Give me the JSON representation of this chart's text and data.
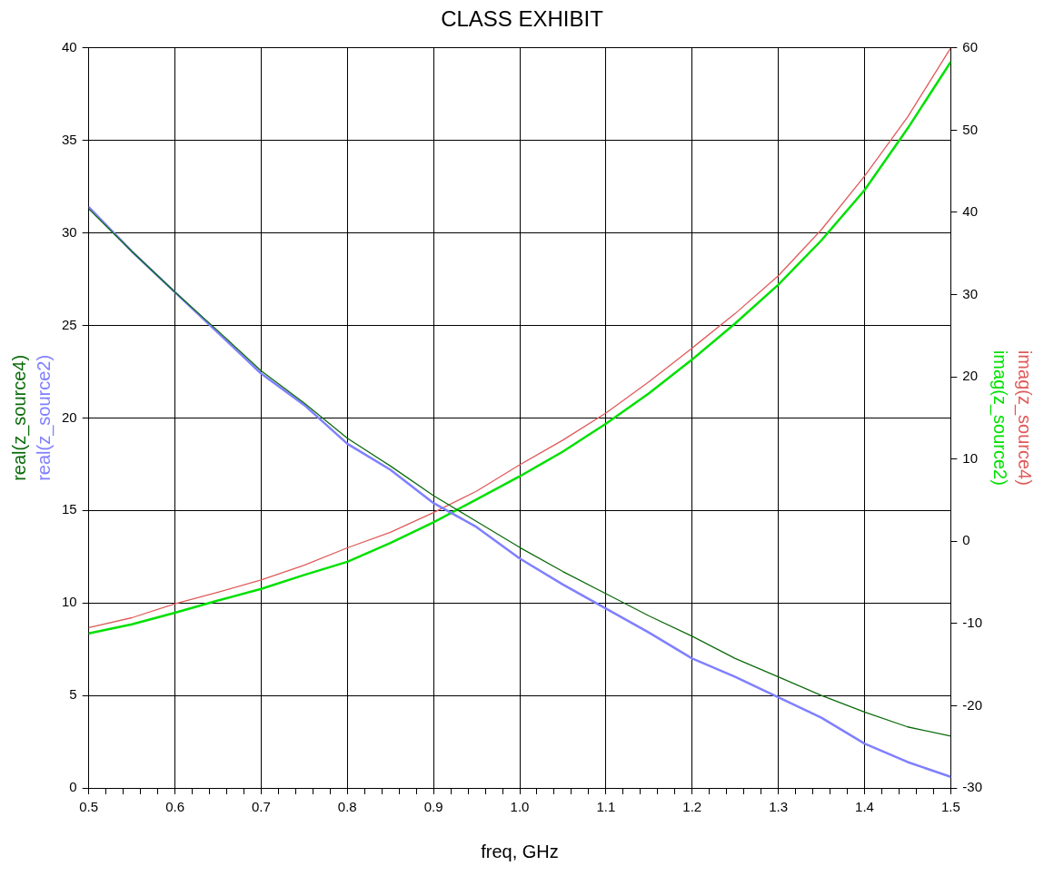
{
  "chart_data": {
    "type": "line",
    "title": "CLASS EXHIBIT",
    "xlabel": "freq, GHz",
    "x": [
      0.5,
      0.55,
      0.6,
      0.65,
      0.7,
      0.75,
      0.8,
      0.85,
      0.9,
      0.95,
      1.0,
      1.05,
      1.1,
      1.15,
      1.2,
      1.25,
      1.3,
      1.35,
      1.4,
      1.45,
      1.5
    ],
    "series": [
      {
        "name": "real(z_source4)",
        "color": "#0b6b0b",
        "values": [
          31.3,
          29.0,
          26.8,
          24.7,
          22.55,
          20.8,
          18.9,
          17.4,
          15.8,
          14.4,
          13.0,
          11.7,
          10.5,
          9.3,
          8.2,
          7.0,
          6.0,
          5.0,
          4.1,
          3.3,
          2.8
        ]
      },
      {
        "name": "real(z_source2)",
        "color": "#7f7fff",
        "values": [
          31.4,
          29.0,
          26.8,
          24.6,
          22.4,
          20.7,
          18.6,
          17.2,
          15.4,
          14.1,
          12.4,
          11.0,
          9.7,
          8.4,
          7.0,
          6.0,
          4.9,
          3.8,
          2.4,
          1.4,
          0.6
        ]
      },
      {
        "name": "imag(z_source4)",
        "color": "#e05a5a",
        "axis": "y2",
        "values": [
          -10.5,
          -9.3,
          -7.6,
          -6.2,
          -4.7,
          -2.9,
          -0.8,
          1.1,
          3.5,
          6.1,
          9.3,
          12.3,
          15.6,
          19.4,
          23.5,
          27.7,
          32.3,
          37.9,
          44.4,
          51.6,
          60
        ]
      },
      {
        "name": "imag(z_source2)",
        "color": "#00e000",
        "axis": "y2",
        "values": [
          -11.2,
          -10.1,
          -8.7,
          -7.2,
          -5.8,
          -4.1,
          -2.5,
          -0.2,
          2.3,
          5.1,
          7.9,
          10.9,
          14.3,
          18.0,
          22.1,
          26.5,
          31.2,
          36.6,
          42.7,
          50.2,
          58.3
        ]
      }
    ],
    "xlim": [
      0.5,
      1.5
    ],
    "xticks": [
      0.5,
      {
        "value": 0.52,
        "label": null
      },
      {
        "value": 0.54,
        "label": null
      },
      {
        "value": 0.56,
        "label": null
      },
      {
        "value": 0.58,
        "label": null
      },
      0.6,
      {
        "value": 0.62,
        "label": null
      },
      {
        "value": 0.64,
        "label": null
      },
      {
        "value": 0.66,
        "label": null
      },
      {
        "value": 0.68,
        "label": null
      },
      0.7,
      {
        "value": 0.72,
        "label": null
      },
      {
        "value": 0.74,
        "label": null
      },
      {
        "value": 0.76,
        "label": null
      },
      {
        "value": 0.78,
        "label": null
      },
      0.8,
      {
        "value": 0.82,
        "label": null
      },
      {
        "value": 0.84,
        "label": null
      },
      {
        "value": 0.86,
        "label": null
      },
      {
        "value": 0.88,
        "label": null
      },
      0.9,
      {
        "value": 0.92,
        "label": null
      },
      {
        "value": 0.94,
        "label": null
      },
      {
        "value": 0.96,
        "label": null
      },
      {
        "value": 0.98,
        "label": null
      },
      {
        "value": 1,
        "label": "1.0"
      },
      {
        "value": 1.02,
        "label": null
      },
      {
        "value": 1.04,
        "label": null
      },
      {
        "value": 1.06,
        "label": null
      },
      {
        "value": 1.08,
        "label": null
      },
      1.1,
      {
        "value": 1.12,
        "label": null
      },
      {
        "value": 1.14,
        "label": null
      },
      {
        "value": 1.16,
        "label": null
      },
      {
        "value": 1.18,
        "label": null
      },
      1.2,
      {
        "value": 1.22,
        "label": null
      },
      {
        "value": 1.24,
        "label": null
      },
      {
        "value": 1.26,
        "label": null
      },
      {
        "value": 1.28,
        "label": null
      },
      1.3,
      {
        "value": 1.32,
        "label": null
      },
      {
        "value": 1.34,
        "label": null
      },
      {
        "value": 1.36,
        "label": null
      },
      {
        "value": 1.38,
        "label": null
      },
      1.4,
      {
        "value": 1.42,
        "label": null
      },
      {
        "value": 1.44,
        "label": null
      },
      {
        "value": 1.46,
        "label": null
      },
      {
        "value": 1.48,
        "label": null
      },
      1.5
    ],
    "ylim": [
      0,
      40
    ],
    "yticks": [
      0,
      5,
      10,
      15,
      20,
      25,
      30,
      35,
      40
    ],
    "y2lim": [
      -30,
      60
    ],
    "y2ticks": [
      -30,
      -20,
      -10,
      0,
      10,
      20,
      30,
      40,
      50,
      60
    ],
    "grid": true,
    "legend": false,
    "marker": "none",
    "line_style": "solid"
  }
}
